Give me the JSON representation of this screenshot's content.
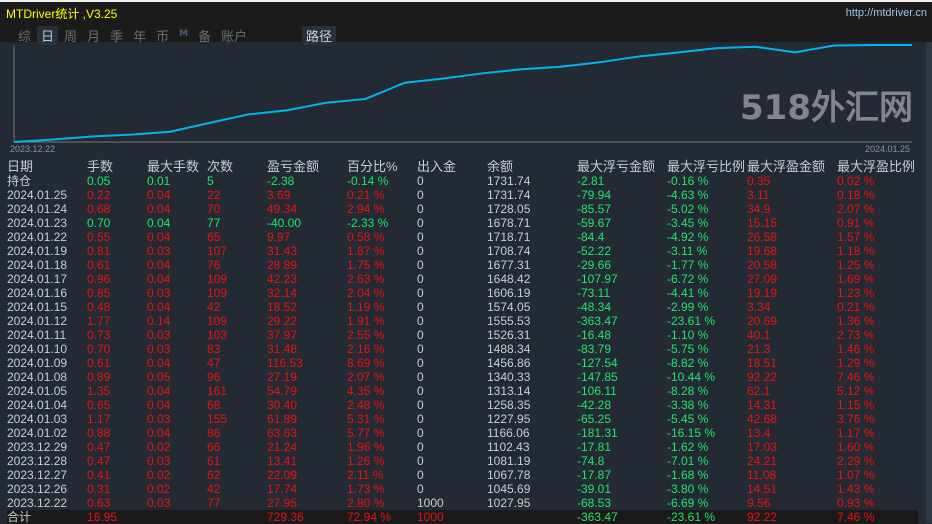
{
  "window": {
    "title": "MTDriver统计 ,V3.25",
    "url": "http://mtdriver.cn"
  },
  "tabs": [
    {
      "label": "综",
      "active": false
    },
    {
      "label": "日",
      "active": true
    },
    {
      "label": "周",
      "active": false
    },
    {
      "label": "月",
      "active": false
    },
    {
      "label": "季",
      "active": false
    },
    {
      "label": "年",
      "active": false
    },
    {
      "label": "币",
      "active": false
    },
    {
      "label": "M",
      "active": false
    },
    {
      "label": "备",
      "active": false
    },
    {
      "label": "账户",
      "active": false
    }
  ],
  "route_button": "路径",
  "chart_data": {
    "type": "line",
    "x_start_label": "2023.12.22",
    "x_end_label": "2024.01.25",
    "line_color": "#00b4f0",
    "grid": false,
    "series": [
      {
        "values": [
          1027.95,
          1045.69,
          1067.78,
          1081.19,
          1102.43,
          1166.06,
          1227.95,
          1258.35,
          1313.14,
          1340.33,
          1456.86,
          1488.34,
          1526.31,
          1555.53,
          1574.05,
          1606.19,
          1648.42,
          1677.31,
          1708.74,
          1718.71,
          1678.71,
          1728.05,
          1731.74,
          1731.74
        ]
      }
    ]
  },
  "colors": {
    "profit": "#ee1111",
    "loss": "#1ee66e",
    "neutral": "#c6ceda",
    "background": "#232a33"
  },
  "table": {
    "columns": [
      "日期",
      "手数",
      "最大手数",
      "次数",
      "盈亏金额",
      "百分比%",
      "出入金",
      "余额",
      "最大浮亏金额",
      "最大浮亏比例",
      "最大浮盈金额",
      "最大浮盈比例"
    ],
    "rows": [
      {
        "c": [
          "持仓",
          "0.05",
          "0.01",
          "5",
          "-2.38",
          "-0.14 %",
          "0",
          "1731.74",
          "-2.81",
          "-0.16 %",
          "0.35",
          "0.02 %"
        ],
        "s": "g"
      },
      {
        "c": [
          "2024.01.25",
          "0.22",
          "0.04",
          "22",
          "3.69",
          "0.21 %",
          "0",
          "1731.74",
          "-79.94",
          "-4.63 %",
          "3.11",
          "0.18 %"
        ],
        "s": "r"
      },
      {
        "c": [
          "2024.01.24",
          "0.68",
          "0.04",
          "70",
          "49.34",
          "2.94 %",
          "0",
          "1728.05",
          "-85.57",
          "-5.02 %",
          "34.9",
          "2.07 %"
        ],
        "s": "r"
      },
      {
        "c": [
          "2024.01.23",
          "0.70",
          "0.04",
          "77",
          "-40.00",
          "-2.33 %",
          "0",
          "1678.71",
          "-59.67",
          "-3.45 %",
          "15.15",
          "0.91 %"
        ],
        "s": "g"
      },
      {
        "c": [
          "2024.01.22",
          "0.55",
          "0.04",
          "65",
          "9.97",
          "0.58 %",
          "0",
          "1718.71",
          "-84.4",
          "-4.92 %",
          "26.58",
          "1.57 %"
        ],
        "s": "r"
      },
      {
        "c": [
          "2024.01.19",
          "0.81",
          "0.03",
          "107",
          "31.43",
          "1.87 %",
          "0",
          "1708.74",
          "-52.22",
          "-3.11 %",
          "19.68",
          "1.18 %"
        ],
        "s": "r"
      },
      {
        "c": [
          "2024.01.18",
          "0.61",
          "0.04",
          "76",
          "28.89",
          "1.75 %",
          "0",
          "1677.31",
          "-29.66",
          "-1.77 %",
          "20.58",
          "1.25 %"
        ],
        "s": "r"
      },
      {
        "c": [
          "2024.01.17",
          "0.96",
          "0.04",
          "109",
          "42.23",
          "2.63 %",
          "0",
          "1648.42",
          "-107.97",
          "-6.72 %",
          "27.09",
          "1.69 %"
        ],
        "s": "r"
      },
      {
        "c": [
          "2024.01.16",
          "0.85",
          "0.03",
          "109",
          "32.14",
          "2.04 %",
          "0",
          "1606.19",
          "-73.11",
          "-4.41 %",
          "19.19",
          "1.23 %"
        ],
        "s": "r"
      },
      {
        "c": [
          "2024.01.15",
          "0.48",
          "0.04",
          "42",
          "18.52",
          "1.19 %",
          "0",
          "1574.05",
          "-48.34",
          "-2.99 %",
          "3.34",
          "0.21 %"
        ],
        "s": "r"
      },
      {
        "c": [
          "2024.01.12",
          "1.77",
          "0.14",
          "109",
          "29.22",
          "1.91 %",
          "0",
          "1555.53",
          "-363.47",
          "-23.61 %",
          "20.69",
          "1.36 %"
        ],
        "s": "r"
      },
      {
        "c": [
          "2024.01.11",
          "0.73",
          "0.03",
          "103",
          "37.97",
          "2.55 %",
          "0",
          "1526.31",
          "-16.48",
          "-1.10 %",
          "40.1",
          "2.73 %"
        ],
        "s": "r"
      },
      {
        "c": [
          "2024.01.10",
          "0.70",
          "0.03",
          "83",
          "31.48",
          "2.16 %",
          "0",
          "1488.34",
          "-83.79",
          "-5.75 %",
          "21.3",
          "1.46 %"
        ],
        "s": "r"
      },
      {
        "c": [
          "2024.01.09",
          "0.61",
          "0.04",
          "47",
          "116.53",
          "8.69 %",
          "0",
          "1456.86",
          "-127.54",
          "-8.82 %",
          "18.51",
          "1.29 %"
        ],
        "s": "r"
      },
      {
        "c": [
          "2024.01.08",
          "0.89",
          "0.05",
          "96",
          "27.19",
          "2.07 %",
          "0",
          "1340.33",
          "-147.85",
          "-10.44 %",
          "92.22",
          "7.46 %"
        ],
        "s": "r"
      },
      {
        "c": [
          "2024.01.05",
          "1.35",
          "0.04",
          "161",
          "54.79",
          "4.35 %",
          "0",
          "1313.14",
          "-106.11",
          "-8.28 %",
          "62.1",
          "5.12 %"
        ],
        "s": "r"
      },
      {
        "c": [
          "2024.01.04",
          "0.65",
          "0.04",
          "68",
          "30.40",
          "2.48 %",
          "0",
          "1258.35",
          "-42.28",
          "-3.38 %",
          "14.31",
          "1.15 %"
        ],
        "s": "r"
      },
      {
        "c": [
          "2024.01.03",
          "1.17",
          "0.03",
          "155",
          "61.89",
          "5.31 %",
          "0",
          "1227.95",
          "-65.25",
          "-5.45 %",
          "42.68",
          "3.76 %"
        ],
        "s": "r"
      },
      {
        "c": [
          "2024.01.02",
          "0.88",
          "0.04",
          "86",
          "63.63",
          "5.77 %",
          "0",
          "1166.06",
          "-181.31",
          "-16.15 %",
          "13.4",
          "1.17 %"
        ],
        "s": "r"
      },
      {
        "c": [
          "2023.12.29",
          "0.47",
          "0.02",
          "66",
          "21.24",
          "1.96 %",
          "0",
          "1102.43",
          "-17.81",
          "-1.62 %",
          "17.03",
          "1.60 %"
        ],
        "s": "r"
      },
      {
        "c": [
          "2023.12.28",
          "0.47",
          "0.03",
          "61",
          "13.41",
          "1.26 %",
          "0",
          "1081.19",
          "-74.8",
          "-7.01 %",
          "24.21",
          "2.29 %"
        ],
        "s": "r"
      },
      {
        "c": [
          "2023.12.27",
          "0.41",
          "0.02",
          "62",
          "22.09",
          "2.11 %",
          "0",
          "1067.78",
          "-17.87",
          "-1.68 %",
          "11.08",
          "1.07 %"
        ],
        "s": "r"
      },
      {
        "c": [
          "2023.12.26",
          "0.31",
          "0.02",
          "42",
          "17.74",
          "1.73 %",
          "0",
          "1045.69",
          "-39.01",
          "-3.80 %",
          "14.51",
          "1.43 %"
        ],
        "s": "r"
      },
      {
        "c": [
          "2023.12.22",
          "0.63",
          "0.03",
          "77",
          "27.95",
          "2.80 %",
          "1000",
          "1027.95",
          "-68.53",
          "-6.69 %",
          "9.56",
          "0.93 %"
        ],
        "s": "r"
      }
    ],
    "total": {
      "c": [
        "合计",
        "16.95",
        "",
        "",
        "729.36",
        "72.94 %",
        "1000",
        "",
        "-363.47",
        "-23.61 %",
        "92.22",
        "7.46 %"
      ]
    }
  },
  "watermark": "518外汇网"
}
